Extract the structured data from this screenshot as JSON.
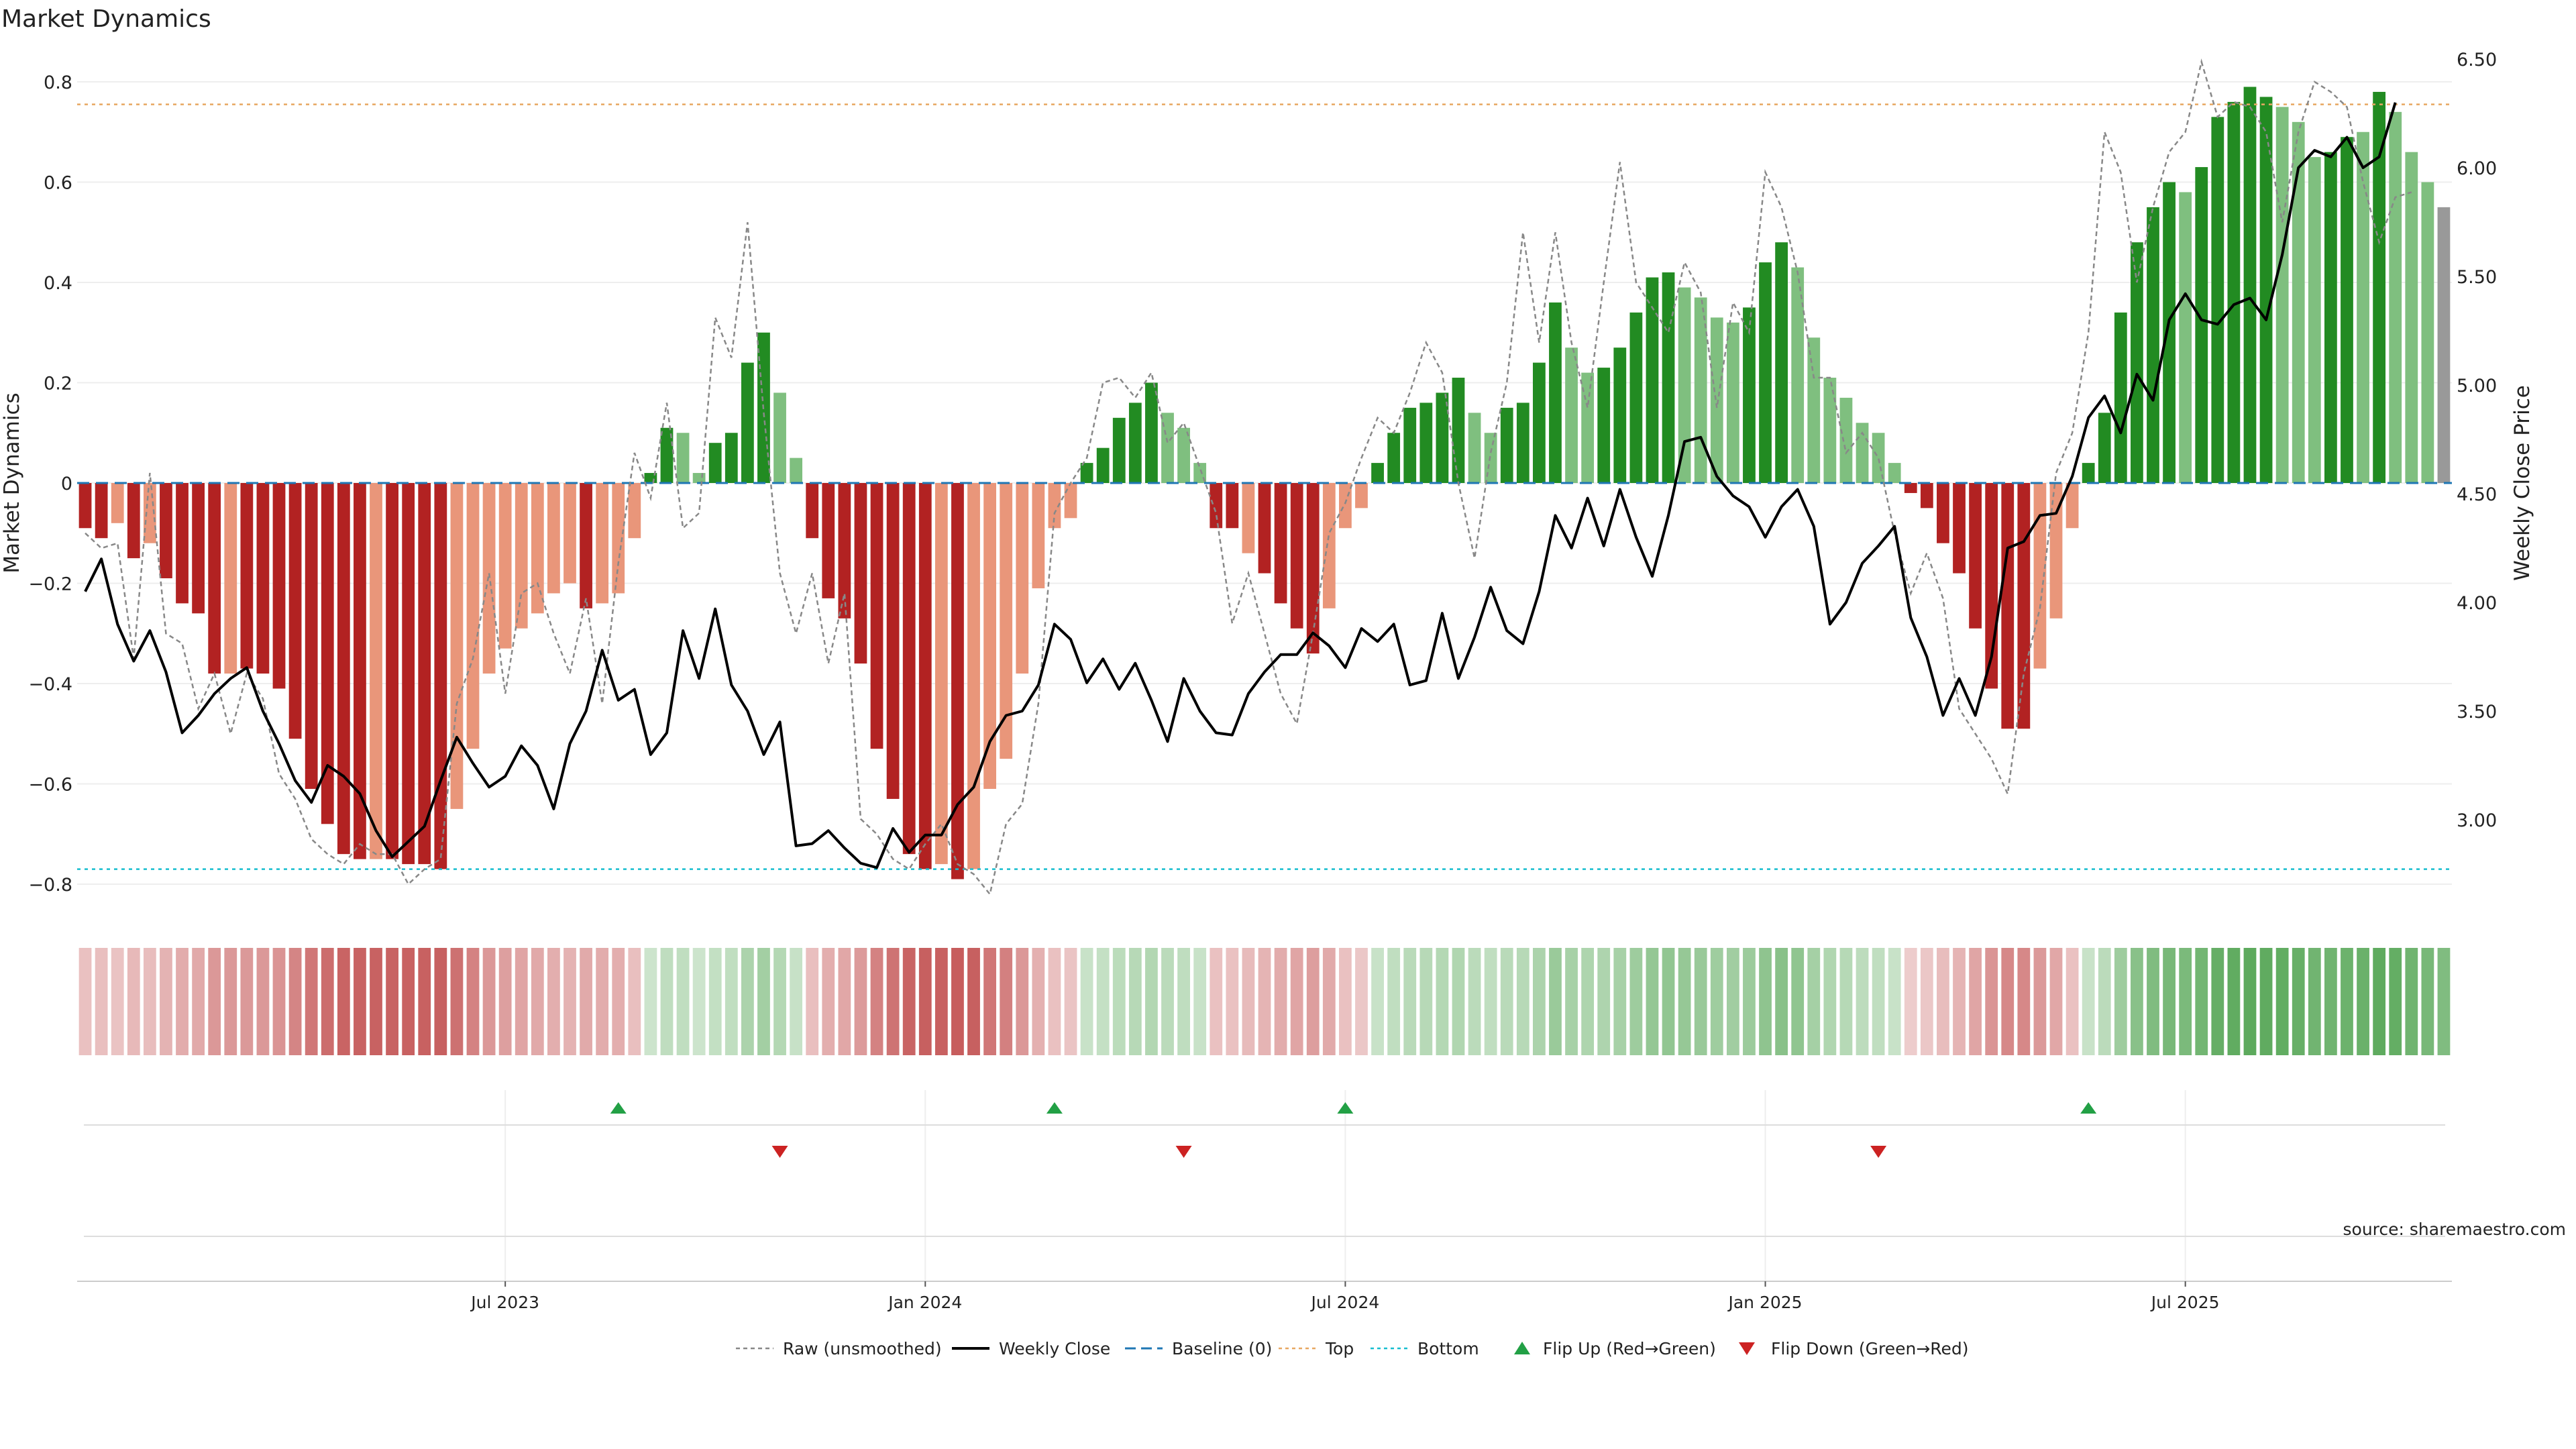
{
  "header": {
    "title": "Market Dynamics"
  },
  "source": "source: sharemaestro.com",
  "chart_data": {
    "type": "bar",
    "title": "Market Dynamics",
    "ylabel": "Market Dynamics",
    "ylabel_right": "Weekly Close Price",
    "ylim": [
      -0.85,
      0.85
    ],
    "ylim_right": [
      2.6,
      6.6
    ],
    "yticks": [
      {
        "value": -0.8,
        "label": "−0.8"
      },
      {
        "value": -0.6,
        "label": "−0.6"
      },
      {
        "value": -0.4,
        "label": "−0.4"
      },
      {
        "value": -0.2,
        "label": "−0.2"
      },
      {
        "value": 0,
        "label": "0"
      },
      {
        "value": 0.2,
        "label": "0.2"
      },
      {
        "value": 0.4,
        "label": "0.4"
      },
      {
        "value": 0.6,
        "label": "0.6"
      },
      {
        "value": 0.8,
        "label": "0.8"
      }
    ],
    "yticks_right": [
      {
        "value": 3.0,
        "label": "3.00"
      },
      {
        "value": 3.5,
        "label": "3.50"
      },
      {
        "value": 4.0,
        "label": "4.00"
      },
      {
        "value": 4.5,
        "label": "4.50"
      },
      {
        "value": 5.0,
        "label": "5.00"
      },
      {
        "value": 5.5,
        "label": "5.50"
      },
      {
        "value": 6.0,
        "label": "6.00"
      },
      {
        "value": 6.5,
        "label": "6.50"
      }
    ],
    "xticks": [
      {
        "label": "Jul 2023",
        "week": 26
      },
      {
        "label": "Jan 2024",
        "week": 52
      },
      {
        "label": "Jul 2024",
        "week": 78
      },
      {
        "label": "Jan 2025",
        "week": 104
      },
      {
        "label": "Jul 2025",
        "week": 130
      }
    ],
    "top_level": 0.755,
    "bottom_level": -0.77,
    "baseline": 0,
    "grid": true,
    "legend_position": "bottom",
    "colors": {
      "bar_red": "#b22222",
      "bar_salmon": "#e9967a",
      "bar_green": "#228b22",
      "bar_lightgreen": "#7fbf7f",
      "close": "#000000",
      "raw": "#888888",
      "baseline": "#1f77b4",
      "top": "#e8a862",
      "bottom": "#17becf",
      "flip_up": "#22a045",
      "flip_down": "#cc2222"
    },
    "series": [
      {
        "name": "Market Dynamics",
        "kind": "bar",
        "values": [
          -0.09,
          -0.11,
          -0.08,
          -0.15,
          -0.12,
          -0.19,
          -0.24,
          -0.26,
          -0.38,
          -0.38,
          -0.37,
          -0.38,
          -0.41,
          -0.51,
          -0.61,
          -0.68,
          -0.74,
          -0.75,
          -0.75,
          -0.75,
          -0.76,
          -0.76,
          -0.77,
          -0.65,
          -0.53,
          -0.38,
          -0.33,
          -0.29,
          -0.26,
          -0.22,
          -0.2,
          -0.25,
          -0.24,
          -0.22,
          -0.11,
          0.02,
          0.11,
          0.1,
          0.02,
          0.08,
          0.1,
          0.24,
          0.3,
          0.18,
          0.05,
          -0.11,
          -0.23,
          -0.27,
          -0.36,
          -0.53,
          -0.63,
          -0.74,
          -0.77,
          -0.76,
          -0.79,
          -0.77,
          -0.61,
          -0.55,
          -0.38,
          -0.21,
          -0.09,
          -0.07,
          0.04,
          0.07,
          0.13,
          0.16,
          0.2,
          0.14,
          0.11,
          0.04,
          -0.09,
          -0.09,
          -0.14,
          -0.18,
          -0.24,
          -0.29,
          -0.34,
          -0.25,
          -0.09,
          -0.05,
          0.04,
          0.1,
          0.15,
          0.16,
          0.18,
          0.21,
          0.14,
          0.1,
          0.15,
          0.16,
          0.24,
          0.36,
          0.27,
          0.22,
          0.23,
          0.27,
          0.34,
          0.41,
          0.42,
          0.39,
          0.37,
          0.33,
          0.32,
          0.35,
          0.44,
          0.48,
          0.43,
          0.29,
          0.21,
          0.17,
          0.12,
          0.1,
          0.04,
          -0.02,
          -0.05,
          -0.12,
          -0.18,
          -0.29,
          -0.41,
          -0.49,
          -0.49,
          -0.37,
          -0.27,
          -0.09,
          0.04,
          0.14,
          0.34,
          0.48,
          0.55,
          0.6,
          0.58,
          0.63,
          0.73,
          0.76,
          0.79,
          0.77,
          0.75,
          0.72,
          0.65,
          0.66,
          0.69,
          0.7,
          0.78,
          0.74,
          0.66,
          0.6,
          0.55
        ],
        "colors": [
          "red",
          "red",
          "salmon",
          "red",
          "salmon",
          "red",
          "red",
          "red",
          "red",
          "salmon",
          "red",
          "red",
          "red",
          "red",
          "red",
          "red",
          "red",
          "red",
          "salmon",
          "red",
          "red",
          "red",
          "red",
          "salmon",
          "salmon",
          "salmon",
          "salmon",
          "salmon",
          "salmon",
          "salmon",
          "salmon",
          "red",
          "salmon",
          "salmon",
          "salmon",
          "green",
          "green",
          "lightgreen",
          "lightgreen",
          "green",
          "green",
          "green",
          "green",
          "lightgreen",
          "lightgreen",
          "red",
          "red",
          "red",
          "red",
          "red",
          "red",
          "red",
          "red",
          "salmon",
          "red",
          "salmon",
          "salmon",
          "salmon",
          "salmon",
          "salmon",
          "salmon",
          "salmon",
          "green",
          "green",
          "green",
          "green",
          "green",
          "lightgreen",
          "lightgreen",
          "lightgreen",
          "red",
          "red",
          "salmon",
          "red",
          "red",
          "red",
          "red",
          "salmon",
          "salmon",
          "salmon",
          "green",
          "green",
          "green",
          "green",
          "green",
          "green",
          "lightgreen",
          "lightgreen",
          "green",
          "green",
          "green",
          "green",
          "lightgreen",
          "lightgreen",
          "green",
          "green",
          "green",
          "green",
          "green",
          "lightgreen",
          "lightgreen",
          "lightgreen",
          "lightgreen",
          "green",
          "green",
          "green",
          "lightgreen",
          "lightgreen",
          "lightgreen",
          "lightgreen",
          "lightgreen",
          "lightgreen",
          "lightgreen",
          "red",
          "red",
          "red",
          "red",
          "red",
          "red",
          "red",
          "red",
          "salmon",
          "salmon",
          "salmon",
          "green",
          "green",
          "green",
          "green",
          "green",
          "green",
          "lightgreen",
          "green",
          "green",
          "green",
          "green",
          "green",
          "lightgreen",
          "lightgreen",
          "lightgreen",
          "green",
          "green",
          "lightgreen",
          "green",
          "lightgreen",
          "lightgreen",
          "lightgreen"
        ]
      },
      {
        "name": "Raw (unsmoothed)",
        "kind": "line",
        "values": [
          -0.1,
          -0.13,
          -0.12,
          -0.35,
          0.02,
          -0.3,
          -0.32,
          -0.45,
          -0.38,
          -0.5,
          -0.38,
          -0.43,
          -0.58,
          -0.63,
          -0.71,
          -0.74,
          -0.76,
          -0.72,
          -0.74,
          -0.74,
          -0.8,
          -0.77,
          -0.75,
          -0.44,
          -0.35,
          -0.18,
          -0.42,
          -0.22,
          -0.2,
          -0.3,
          -0.38,
          -0.23,
          -0.44,
          -0.16,
          0.06,
          -0.03,
          0.16,
          -0.09,
          -0.06,
          0.33,
          0.25,
          0.52,
          0.14,
          -0.18,
          -0.3,
          -0.18,
          -0.36,
          -0.22,
          -0.67,
          -0.7,
          -0.75,
          -0.77,
          -0.72,
          -0.68,
          -0.76,
          -0.78,
          -0.82,
          -0.68,
          -0.64,
          -0.44,
          -0.06,
          0.0,
          0.05,
          0.2,
          0.21,
          0.17,
          0.22,
          0.08,
          0.12,
          0.03,
          -0.06,
          -0.28,
          -0.18,
          -0.3,
          -0.42,
          -0.48,
          -0.3,
          -0.1,
          -0.04,
          0.05,
          0.13,
          0.1,
          0.18,
          0.28,
          0.22,
          0.0,
          -0.15,
          0.06,
          0.2,
          0.5,
          0.28,
          0.5,
          0.28,
          0.15,
          0.4,
          0.64,
          0.4,
          0.35,
          0.3,
          0.44,
          0.38,
          0.15,
          0.36,
          0.3,
          0.62,
          0.55,
          0.42,
          0.21,
          0.21,
          0.06,
          0.1,
          0.05,
          -0.1,
          -0.22,
          -0.14,
          -0.23,
          -0.45,
          -0.5,
          -0.55,
          -0.62,
          -0.38,
          -0.25,
          0.02,
          0.1,
          0.3,
          0.7,
          0.62,
          0.4,
          0.55,
          0.66,
          0.7,
          0.84,
          0.73,
          0.76,
          0.75,
          0.7,
          0.52,
          0.7,
          0.8,
          0.78,
          0.75,
          0.6,
          0.48,
          0.57,
          0.58
        ]
      },
      {
        "name": "Weekly Close",
        "kind": "line",
        "axis": "right",
        "values": [
          4.05,
          4.2,
          3.9,
          3.73,
          3.87,
          3.68,
          3.4,
          3.48,
          3.58,
          3.65,
          3.7,
          3.5,
          3.35,
          3.18,
          3.08,
          3.25,
          3.2,
          3.12,
          2.95,
          2.83,
          2.9,
          2.97,
          3.18,
          3.38,
          3.26,
          3.15,
          3.2,
          3.34,
          3.25,
          3.05,
          3.35,
          3.5,
          3.78,
          3.55,
          3.6,
          3.3,
          3.4,
          3.87,
          3.65,
          3.97,
          3.62,
          3.5,
          3.3,
          3.45,
          2.88,
          2.89,
          2.95,
          2.87,
          2.8,
          2.78,
          2.96,
          2.85,
          2.93,
          2.93,
          3.07,
          3.15,
          3.36,
          3.48,
          3.5,
          3.62,
          3.9,
          3.83,
          3.63,
          3.74,
          3.6,
          3.72,
          3.55,
          3.36,
          3.65,
          3.5,
          3.4,
          3.39,
          3.58,
          3.68,
          3.76,
          3.76,
          3.86,
          3.8,
          3.7,
          3.88,
          3.82,
          3.9,
          3.62,
          3.64,
          3.95,
          3.65,
          3.84,
          4.07,
          3.87,
          3.81,
          4.05,
          4.4,
          4.25,
          4.48,
          4.26,
          4.52,
          4.3,
          4.12,
          4.4,
          4.74,
          4.76,
          4.58,
          4.49,
          4.44,
          4.3,
          4.44,
          4.52,
          4.35,
          3.9,
          4.0,
          4.18,
          4.26,
          4.35,
          3.93,
          3.75,
          3.48,
          3.65,
          3.48,
          3.75,
          4.25,
          4.28,
          4.4,
          4.41,
          4.58,
          4.85,
          4.95,
          4.78,
          5.05,
          4.93,
          5.3,
          5.42,
          5.3,
          5.28,
          5.37,
          5.4,
          5.3,
          5.6,
          6.0,
          6.08,
          6.05,
          6.14,
          6.0,
          6.05,
          6.3
        ]
      }
    ],
    "momentum_strip": {
      "values": [
        -0.09,
        -0.11,
        -0.08,
        -0.15,
        -0.12,
        -0.19,
        -0.24,
        -0.26,
        -0.38,
        -0.38,
        -0.37,
        -0.38,
        -0.41,
        -0.51,
        -0.61,
        -0.68,
        -0.74,
        -0.75,
        -0.75,
        -0.75,
        -0.76,
        -0.76,
        -0.77,
        -0.65,
        -0.53,
        -0.38,
        -0.33,
        -0.29,
        -0.26,
        -0.22,
        -0.2,
        -0.25,
        -0.24,
        -0.22,
        -0.11,
        0.02,
        0.11,
        0.1,
        0.02,
        0.08,
        0.1,
        0.24,
        0.3,
        0.18,
        0.05,
        -0.11,
        -0.23,
        -0.27,
        -0.36,
        -0.53,
        -0.63,
        -0.74,
        -0.77,
        -0.76,
        -0.79,
        -0.77,
        -0.61,
        -0.55,
        -0.38,
        -0.21,
        -0.09,
        -0.07,
        0.04,
        0.07,
        0.13,
        0.16,
        0.2,
        0.14,
        0.11,
        0.04,
        -0.09,
        -0.09,
        -0.14,
        -0.18,
        -0.24,
        -0.29,
        -0.34,
        -0.25,
        -0.09,
        -0.05,
        0.04,
        0.1,
        0.15,
        0.16,
        0.18,
        0.21,
        0.14,
        0.1,
        0.15,
        0.16,
        0.24,
        0.36,
        0.27,
        0.22,
        0.23,
        0.27,
        0.34,
        0.41,
        0.42,
        0.39,
        0.37,
        0.33,
        0.32,
        0.35,
        0.44,
        0.48,
        0.43,
        0.29,
        0.21,
        0.17,
        0.12,
        0.1,
        0.04,
        -0.02,
        -0.05,
        -0.12,
        -0.18,
        -0.29,
        -0.41,
        -0.49,
        -0.49,
        -0.37,
        -0.27,
        -0.09,
        0.04,
        0.14,
        0.34,
        0.48,
        0.55,
        0.6,
        0.58,
        0.63,
        0.73,
        0.76,
        0.79,
        0.77,
        0.75,
        0.72,
        0.65,
        0.66,
        0.69,
        0.7,
        0.78,
        0.74,
        0.66,
        0.6,
        0.55
      ]
    },
    "flips": {
      "up_weeks": [
        33,
        60,
        78,
        124
      ],
      "down_weeks": [
        43,
        68,
        111
      ]
    },
    "legend": [
      {
        "label": "Raw (unsmoothed)",
        "style": "raw"
      },
      {
        "label": "Weekly Close",
        "style": "close"
      },
      {
        "label": "Baseline (0)",
        "style": "baseline"
      },
      {
        "label": "Top",
        "style": "top"
      },
      {
        "label": "Bottom",
        "style": "bottom"
      },
      {
        "label": "Flip Up (Red→Green)",
        "style": "flip_up"
      },
      {
        "label": "Flip Down (Green→Red)",
        "style": "flip_down"
      }
    ]
  }
}
